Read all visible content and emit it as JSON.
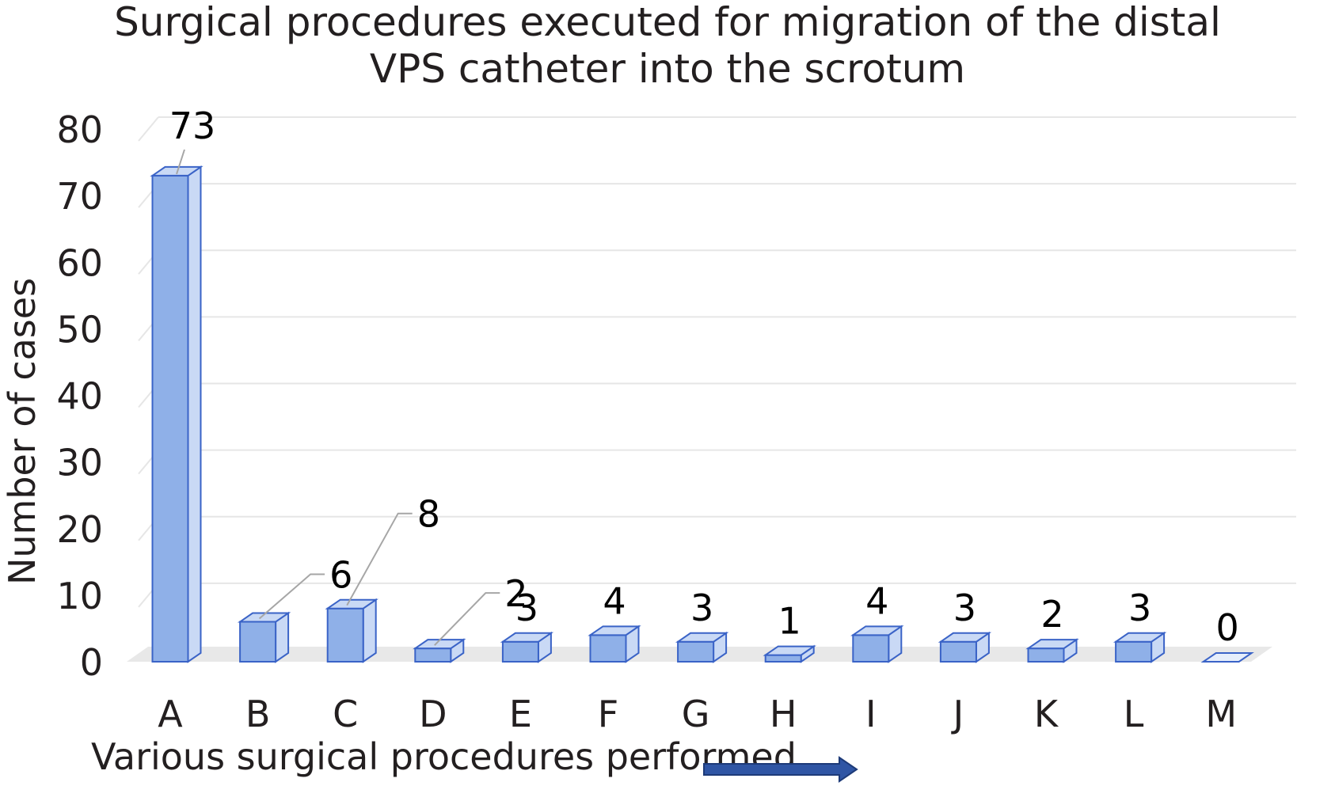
{
  "chart_data": {
    "type": "bar",
    "title_lines": [
      "Surgical procedures executed for migration of the distal",
      "VPS catheter into the scrotum"
    ],
    "xlabel": "Various surgical procedures performed",
    "ylabel": "Number of cases",
    "categories": [
      "A",
      "B",
      "C",
      "D",
      "E",
      "F",
      "G",
      "H",
      "I",
      "J",
      "K",
      "L",
      "M"
    ],
    "values": [
      73,
      6,
      8,
      2,
      3,
      4,
      3,
      1,
      4,
      3,
      2,
      3,
      0
    ],
    "data_labels": [
      "73",
      "6",
      "8",
      "2",
      "3",
      "4",
      "3",
      "1",
      "4",
      "3",
      "2",
      "3",
      "0"
    ],
    "ylim": [
      0,
      80
    ],
    "yticks": [
      "0",
      "10",
      "20",
      "30",
      "40",
      "50",
      "60",
      "70",
      "80"
    ],
    "grid": true,
    "style": "3d-column",
    "colors": {
      "bar_fill": "#8fb0e8",
      "bar_stroke": "#3a63c7",
      "bar_top": "#c9d9f5",
      "floor": "#e8e8e8",
      "grid": "#e6e6e6",
      "leader": "#a6a6a6",
      "arrow": "#2f55a4"
    }
  }
}
